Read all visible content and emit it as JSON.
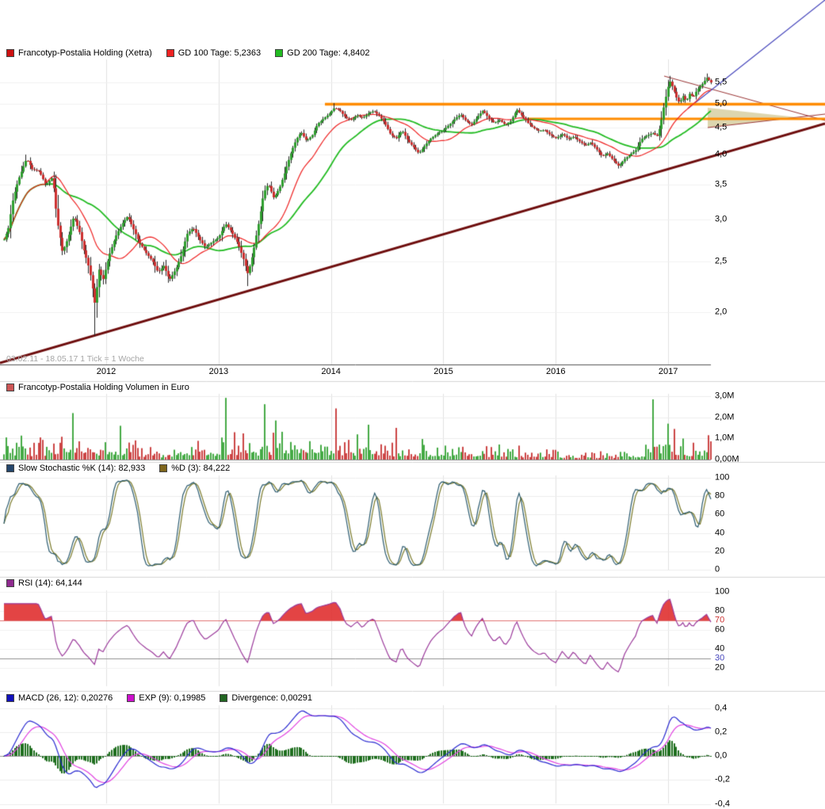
{
  "panels": {
    "price": {
      "legend": [
        {
          "label": "Francotyp-Postalia Holding (Xetra)",
          "color": "#cc1111"
        },
        {
          "label": "GD 100 Tage: 5,2363",
          "color": "#ee2222"
        },
        {
          "label": "GD 200 Tage: 4,8402",
          "color": "#22bb22"
        }
      ],
      "caption": "03.02.11 - 18.05.17    1 Tick = 1 Woche",
      "y_ticks": [
        {
          "label": "5,5",
          "value": 5.5
        },
        {
          "label": "5,0",
          "value": 5.0
        },
        {
          "label": "4,5",
          "value": 4.5
        },
        {
          "label": "4,0",
          "value": 4.0
        },
        {
          "label": "3,5",
          "value": 3.5
        },
        {
          "label": "3,0",
          "value": 3.0
        },
        {
          "label": "2,5",
          "value": 2.5
        },
        {
          "label": "2,0",
          "value": 2.0
        }
      ],
      "x_ticks": [
        {
          "label": "2012",
          "value": 2012
        },
        {
          "label": "2013",
          "value": 2013
        },
        {
          "label": "2014",
          "value": 2014
        },
        {
          "label": "2015",
          "value": 2015
        },
        {
          "label": "2016",
          "value": 2016
        },
        {
          "label": "2017",
          "value": 2017
        }
      ]
    },
    "volume": {
      "legend": [
        {
          "label": "Francotyp-Postalia Holding Volumen in Euro",
          "color": "#cc5555"
        }
      ],
      "y_ticks": [
        {
          "label": "3,0M",
          "value": 3
        },
        {
          "label": "2,0M",
          "value": 2
        },
        {
          "label": "1,0M",
          "value": 1
        },
        {
          "label": "0,00M",
          "value": 0
        }
      ]
    },
    "stochastic": {
      "legend": [
        {
          "label": "Slow Stochastic %K (14): 82,933",
          "color": "#24456b"
        },
        {
          "label": "%D (3): 84,222",
          "color": "#7d651c"
        }
      ],
      "y_ticks": [
        {
          "label": "100",
          "value": 100
        },
        {
          "label": "80",
          "value": 80
        },
        {
          "label": "60",
          "value": 60
        },
        {
          "label": "40",
          "value": 40
        },
        {
          "label": "20",
          "value": 20
        },
        {
          "label": "0",
          "value": 0
        }
      ]
    },
    "rsi": {
      "legend": [
        {
          "label": "RSI (14): 64,144",
          "color": "#8e2a8e"
        }
      ],
      "y_ticks": [
        {
          "label": "100",
          "value": 100,
          "color": "#000000"
        },
        {
          "label": "80",
          "value": 80,
          "color": "#000000"
        },
        {
          "label": "70",
          "value": 70,
          "color": "#cc3333"
        },
        {
          "label": "60",
          "value": 60,
          "color": "#000000"
        },
        {
          "label": "40",
          "value": 40,
          "color": "#000000"
        },
        {
          "label": "30",
          "value": 30,
          "color": "#4444bb"
        },
        {
          "label": "20",
          "value": 20,
          "color": "#000000"
        }
      ]
    },
    "macd": {
      "legend": [
        {
          "label": "MACD (26, 12): 0,20276",
          "color": "#1111bb"
        },
        {
          "label": "EXP (9): 0,19985",
          "color": "#cc11cc"
        },
        {
          "label": "Divergence: 0,00291",
          "color": "#226622"
        }
      ],
      "y_ticks": [
        {
          "label": "0,4",
          "value": 0.4
        },
        {
          "label": "0,2",
          "value": 0.2
        },
        {
          "label": "0,0",
          "value": 0.0
        },
        {
          "label": "-0,2",
          "value": -0.2
        },
        {
          "label": "-0,4",
          "value": -0.4
        }
      ]
    }
  },
  "chart_data": [
    {
      "type": "candlestick",
      "title": "Francotyp-Postalia Holding (Xetra)",
      "frequency": "1 Tick = 1 Woche",
      "x_range": [
        2011.09,
        2017.38
      ],
      "y_scale": "log",
      "ylim": [
        1.8,
        6.1
      ],
      "x_tick_years": [
        2012,
        2013,
        2014,
        2015,
        2016,
        2017
      ],
      "close_keyframes": [
        [
          2011.09,
          2.75
        ],
        [
          2011.13,
          2.9
        ],
        [
          2011.17,
          3.3
        ],
        [
          2011.22,
          3.6
        ],
        [
          2011.29,
          3.93
        ],
        [
          2011.34,
          3.75
        ],
        [
          2011.4,
          3.72
        ],
        [
          2011.46,
          3.5
        ],
        [
          2011.52,
          3.62
        ],
        [
          2011.56,
          3.0
        ],
        [
          2011.61,
          2.6
        ],
        [
          2011.66,
          2.78
        ],
        [
          2011.71,
          3.05
        ],
        [
          2011.76,
          2.85
        ],
        [
          2011.8,
          2.62
        ],
        [
          2011.85,
          2.4
        ],
        [
          2011.9,
          2.05
        ],
        [
          2011.93,
          2.42
        ],
        [
          2011.97,
          2.3
        ],
        [
          2012.02,
          2.55
        ],
        [
          2012.08,
          2.78
        ],
        [
          2012.14,
          2.95
        ],
        [
          2012.19,
          3.05
        ],
        [
          2012.24,
          2.88
        ],
        [
          2012.29,
          2.72
        ],
        [
          2012.35,
          2.6
        ],
        [
          2012.41,
          2.5
        ],
        [
          2012.46,
          2.38
        ],
        [
          2012.51,
          2.45
        ],
        [
          2012.56,
          2.3
        ],
        [
          2012.62,
          2.42
        ],
        [
          2012.67,
          2.58
        ],
        [
          2012.72,
          2.82
        ],
        [
          2012.77,
          2.9
        ],
        [
          2012.83,
          2.75
        ],
        [
          2012.88,
          2.66
        ],
        [
          2012.94,
          2.72
        ],
        [
          2013.0,
          2.78
        ],
        [
          2013.06,
          2.95
        ],
        [
          2013.11,
          2.85
        ],
        [
          2013.17,
          2.7
        ],
        [
          2013.22,
          2.52
        ],
        [
          2013.26,
          2.36
        ],
        [
          2013.31,
          2.62
        ],
        [
          2013.36,
          3.0
        ],
        [
          2013.4,
          3.38
        ],
        [
          2013.44,
          3.52
        ],
        [
          2013.49,
          3.3
        ],
        [
          2013.54,
          3.45
        ],
        [
          2013.59,
          3.72
        ],
        [
          2013.64,
          4.02
        ],
        [
          2013.69,
          4.28
        ],
        [
          2013.73,
          4.42
        ],
        [
          2013.78,
          4.25
        ],
        [
          2013.83,
          4.35
        ],
        [
          2013.88,
          4.58
        ],
        [
          2013.93,
          4.68
        ],
        [
          2013.98,
          4.78
        ],
        [
          2014.03,
          4.92
        ],
        [
          2014.08,
          4.85
        ],
        [
          2014.13,
          4.7
        ],
        [
          2014.18,
          4.66
        ],
        [
          2014.23,
          4.76
        ],
        [
          2014.28,
          4.7
        ],
        [
          2014.33,
          4.8
        ],
        [
          2014.38,
          4.85
        ],
        [
          2014.43,
          4.74
        ],
        [
          2014.48,
          4.58
        ],
        [
          2014.53,
          4.36
        ],
        [
          2014.58,
          4.3
        ],
        [
          2014.63,
          4.45
        ],
        [
          2014.68,
          4.26
        ],
        [
          2014.73,
          4.14
        ],
        [
          2014.78,
          4.02
        ],
        [
          2014.84,
          4.18
        ],
        [
          2014.89,
          4.3
        ],
        [
          2014.95,
          4.4
        ],
        [
          2015.0,
          4.46
        ],
        [
          2015.05,
          4.56
        ],
        [
          2015.1,
          4.68
        ],
        [
          2015.15,
          4.78
        ],
        [
          2015.2,
          4.64
        ],
        [
          2015.25,
          4.56
        ],
        [
          2015.3,
          4.72
        ],
        [
          2015.35,
          4.86
        ],
        [
          2015.4,
          4.7
        ],
        [
          2015.45,
          4.6
        ],
        [
          2015.5,
          4.66
        ],
        [
          2015.55,
          4.56
        ],
        [
          2015.6,
          4.64
        ],
        [
          2015.65,
          4.88
        ],
        [
          2015.7,
          4.74
        ],
        [
          2015.75,
          4.6
        ],
        [
          2015.8,
          4.5
        ],
        [
          2015.85,
          4.44
        ],
        [
          2015.9,
          4.46
        ],
        [
          2015.95,
          4.36
        ],
        [
          2016.0,
          4.3
        ],
        [
          2016.06,
          4.38
        ],
        [
          2016.11,
          4.28
        ],
        [
          2016.16,
          4.33
        ],
        [
          2016.21,
          4.24
        ],
        [
          2016.26,
          4.16
        ],
        [
          2016.31,
          4.22
        ],
        [
          2016.36,
          4.1
        ],
        [
          2016.41,
          3.97
        ],
        [
          2016.46,
          4.02
        ],
        [
          2016.51,
          3.9
        ],
        [
          2016.56,
          3.8
        ],
        [
          2016.61,
          3.92
        ],
        [
          2016.66,
          4.0
        ],
        [
          2016.71,
          4.08
        ],
        [
          2016.76,
          4.28
        ],
        [
          2016.81,
          4.35
        ],
        [
          2016.86,
          4.4
        ],
        [
          2016.9,
          4.34
        ],
        [
          2016.93,
          4.55
        ],
        [
          2016.96,
          4.95
        ],
        [
          2016.99,
          5.32
        ],
        [
          2017.01,
          5.55
        ],
        [
          2017.04,
          5.38
        ],
        [
          2017.07,
          5.16
        ],
        [
          2017.1,
          5.02
        ],
        [
          2017.13,
          5.18
        ],
        [
          2017.16,
          5.06
        ],
        [
          2017.19,
          5.24
        ],
        [
          2017.22,
          5.14
        ],
        [
          2017.25,
          5.3
        ],
        [
          2017.28,
          5.4
        ],
        [
          2017.31,
          5.48
        ],
        [
          2017.34,
          5.62
        ],
        [
          2017.38,
          5.5
        ]
      ],
      "wick_lows": [
        [
          2011.9,
          1.8
        ],
        [
          2013.26,
          2.24
        ]
      ],
      "wick_highs": [
        [
          2011.29,
          4.0
        ],
        [
          2014.03,
          5.02
        ],
        [
          2017.01,
          5.66
        ],
        [
          2017.34,
          5.72
        ]
      ],
      "moving_averages": {
        "gd100": {
          "period_days": 100,
          "last": 5.2363,
          "color": "#ee2222"
        },
        "gd200": {
          "period_days": 200,
          "last": 4.8402,
          "color": "#22bb22"
        }
      },
      "candle_colors": {
        "up": "#2f9e2f",
        "down": "#cc2f2f",
        "wick": "#222222"
      },
      "drawings": {
        "trendline_major": {
          "from": [
            0,
            458
          ],
          "to": [
            1041,
            156
          ],
          "color": "#6e0e0e",
          "width": 3
        },
        "trendline_blue": {
          "from": [
            868,
            137
          ],
          "to": [
            1041,
            0
          ],
          "color": "#4444bb",
          "width": 1.2
        },
        "hline_orange_upper": {
          "y": 131.5,
          "x_from": 410,
          "x_to": 1041,
          "color": "#ff8c00",
          "width": 3.5
        },
        "hline_orange_lower": {
          "y": 150,
          "x_from": 666,
          "x_to": 1041,
          "color": "#ff8c00",
          "width": 3
        },
        "wedge": {
          "points": [
            [
              893,
              136
            ],
            [
              893,
              161
            ],
            [
              1006,
              148
            ]
          ],
          "fill": "rgba(217,210,166,0.9)"
        },
        "line_red_upper": {
          "from": [
            838,
            96
          ],
          "to": [
            1041,
            152
          ],
          "color": "#993333",
          "width": 1
        },
        "line_red_lower": {
          "from": [
            893,
            161
          ],
          "to": [
            1041,
            144
          ],
          "color": "#993333",
          "width": 1
        }
      }
    },
    {
      "type": "bar",
      "title": "Francotyp-Postalia Holding Volumen in Euro",
      "ylim": [
        0,
        3000000
      ],
      "unit": "M",
      "envelope_keyframes": [
        [
          2011.09,
          0.85
        ],
        [
          2011.35,
          0.6
        ],
        [
          2011.55,
          0.75
        ],
        [
          2011.72,
          0.95
        ],
        [
          2011.95,
          0.7
        ],
        [
          2012.1,
          0.85
        ],
        [
          2012.35,
          0.45
        ],
        [
          2012.6,
          0.35
        ],
        [
          2012.85,
          0.5
        ],
        [
          2013.05,
          0.75
        ],
        [
          2013.3,
          0.7
        ],
        [
          2013.5,
          0.9
        ],
        [
          2013.8,
          0.6
        ],
        [
          2014.05,
          0.8
        ],
        [
          2014.35,
          0.65
        ],
        [
          2014.7,
          0.5
        ],
        [
          2015.0,
          0.55
        ],
        [
          2015.4,
          0.45
        ],
        [
          2015.8,
          0.35
        ],
        [
          2016.1,
          0.28
        ],
        [
          2016.5,
          0.3
        ],
        [
          2016.75,
          0.4
        ],
        [
          2016.95,
          0.9
        ],
        [
          2017.15,
          0.6
        ],
        [
          2017.38,
          0.7
        ]
      ],
      "spikes": [
        [
          2011.7,
          2.2
        ],
        [
          2012.13,
          1.6
        ],
        [
          2013.06,
          2.92
        ],
        [
          2013.41,
          2.62
        ],
        [
          2013.5,
          1.85
        ],
        [
          2014.04,
          2.42
        ],
        [
          2014.33,
          1.65
        ],
        [
          2014.58,
          1.5
        ],
        [
          2016.87,
          2.85
        ],
        [
          2016.99,
          1.7
        ],
        [
          2017.06,
          1.45
        ]
      ],
      "colors": {
        "up": "#44aa44",
        "down": "#cc4444"
      }
    },
    {
      "type": "line",
      "title": "Slow Stochastic",
      "k_period": 14,
      "d_period": 3,
      "last_k": 82.933,
      "last_d": 84.222,
      "ylim": [
        0,
        100
      ],
      "colors": {
        "k": "#2a5a6e",
        "d": "#7a7a2a"
      }
    },
    {
      "type": "line",
      "title": "RSI",
      "period": 14,
      "last": 64.144,
      "ylim": [
        0,
        100
      ],
      "levels": {
        "overbought": 70,
        "oversold": 30
      },
      "colors": {
        "line": "#9b3a9b",
        "overbought_fill": "rgba(224,48,48,0.9)",
        "level70": "#e07070",
        "level30": "#909090"
      }
    },
    {
      "type": "line+bar",
      "title": "MACD",
      "fast": 12,
      "slow": 26,
      "signal_period": 9,
      "last_macd": 0.20276,
      "last_signal": 0.19985,
      "last_divergence": 0.00291,
      "ylim": [
        -0.4,
        0.4
      ],
      "colors": {
        "macd": "#2a2ad0",
        "signal": "#e040e0",
        "histogram": "#1e6e1e"
      }
    }
  ]
}
